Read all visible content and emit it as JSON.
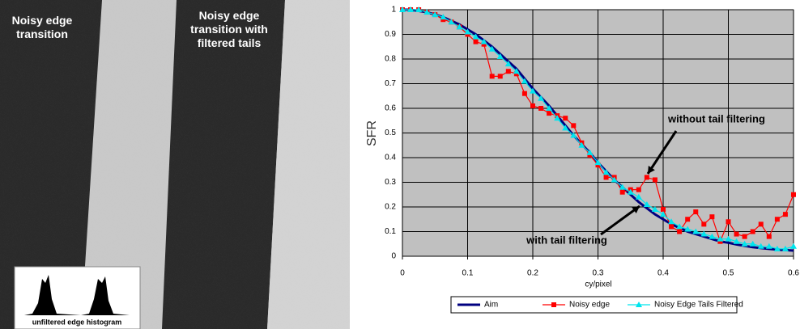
{
  "photo": {
    "labels": [
      "Noisy edge\ntransition",
      "Noisy edge\ntransition with\nfiltered tails"
    ],
    "inset_caption": "unfiltered edge histogram"
  },
  "chart_data": {
    "type": "line",
    "ylabel": "SFR",
    "xlabel": "cy/pixel",
    "x": [
      0,
      0.0125,
      0.025,
      0.0375,
      0.05,
      0.0625,
      0.075,
      0.0875,
      0.1,
      0.1125,
      0.125,
      0.1375,
      0.15,
      0.1625,
      0.175,
      0.1875,
      0.2,
      0.2125,
      0.225,
      0.2375,
      0.25,
      0.2625,
      0.275,
      0.2875,
      0.3,
      0.3125,
      0.325,
      0.3375,
      0.35,
      0.3625,
      0.375,
      0.3875,
      0.4,
      0.4125,
      0.425,
      0.4375,
      0.45,
      0.4625,
      0.475,
      0.4875,
      0.5,
      0.5125,
      0.525,
      0.5375,
      0.55,
      0.5625,
      0.575,
      0.5875,
      0.6
    ],
    "series": [
      {
        "name": "Aim",
        "color": "#000080",
        "values": [
          1,
          1,
          0.995,
          0.99,
          0.98,
          0.97,
          0.955,
          0.94,
          0.92,
          0.9,
          0.875,
          0.85,
          0.82,
          0.79,
          0.76,
          0.72,
          0.68,
          0.645,
          0.61,
          0.57,
          0.53,
          0.49,
          0.455,
          0.42,
          0.38,
          0.345,
          0.31,
          0.28,
          0.25,
          0.22,
          0.195,
          0.17,
          0.15,
          0.13,
          0.115,
          0.1,
          0.09,
          0.08,
          0.07,
          0.06,
          0.055,
          0.048,
          0.042,
          0.037,
          0.033,
          0.03,
          0.027,
          0.025,
          0.023
        ]
      },
      {
        "name": "Noisy edge",
        "color": "#ff0000",
        "values": [
          1,
          1,
          1,
          0.99,
          0.98,
          0.96,
          0.95,
          0.93,
          0.9,
          0.87,
          0.86,
          0.73,
          0.73,
          0.75,
          0.74,
          0.66,
          0.61,
          0.6,
          0.58,
          0.57,
          0.56,
          0.53,
          0.46,
          0.41,
          0.37,
          0.32,
          0.32,
          0.26,
          0.27,
          0.27,
          0.32,
          0.31,
          0.19,
          0.12,
          0.1,
          0.15,
          0.18,
          0.13,
          0.16,
          0.06,
          0.14,
          0.09,
          0.08,
          0.1,
          0.13,
          0.08,
          0.15,
          0.17,
          0.25
        ]
      },
      {
        "name": "Noisy Edge Tails Filtered",
        "color": "#00e5ee",
        "values": [
          1,
          1,
          1,
          0.99,
          0.98,
          0.97,
          0.95,
          0.93,
          0.91,
          0.89,
          0.87,
          0.84,
          0.81,
          0.78,
          0.75,
          0.71,
          0.67,
          0.64,
          0.6,
          0.56,
          0.52,
          0.49,
          0.45,
          0.42,
          0.38,
          0.34,
          0.31,
          0.28,
          0.26,
          0.24,
          0.21,
          0.19,
          0.17,
          0.14,
          0.12,
          0.11,
          0.1,
          0.09,
          0.08,
          0.07,
          0.07,
          0.06,
          0.05,
          0.05,
          0.04,
          0.04,
          0.03,
          0.03,
          0.04
        ]
      }
    ],
    "annotations": [
      "without tail filtering",
      "with tail filtering"
    ],
    "xlim": [
      0,
      0.6
    ],
    "xticks": [
      0,
      0.1,
      0.2,
      0.3,
      0.4,
      0.5,
      0.6
    ],
    "ylim": [
      0,
      1
    ],
    "yticks": [
      0,
      0.1,
      0.2,
      0.3,
      0.4,
      0.5,
      0.6,
      0.7,
      0.8,
      0.9,
      1
    ],
    "grid": true,
    "plot_background": "#c0c0c0",
    "legend": "bottom"
  }
}
